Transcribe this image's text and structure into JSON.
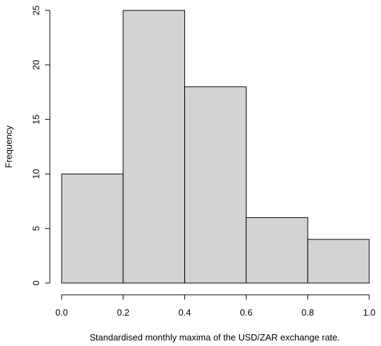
{
  "chart_data": {
    "type": "bar",
    "subtype": "histogram",
    "bins": [
      {
        "x0": 0.0,
        "x1": 0.2,
        "count": 10
      },
      {
        "x0": 0.2,
        "x1": 0.4,
        "count": 25
      },
      {
        "x0": 0.4,
        "x1": 0.6,
        "count": 18
      },
      {
        "x0": 0.6,
        "x1": 0.8,
        "count": 6
      },
      {
        "x0": 0.8,
        "x1": 1.0,
        "count": 4
      }
    ],
    "xlabel": "Standardised monthly maxima of the USD/ZAR exchange rate.",
    "ylabel": "Frequency",
    "xlim": [
      0.0,
      1.0
    ],
    "ylim": [
      0,
      25
    ],
    "xticks": [
      "0.0",
      "0.2",
      "0.4",
      "0.6",
      "0.8",
      "1.0"
    ],
    "yticks": [
      "0",
      "5",
      "10",
      "15",
      "20",
      "25"
    ],
    "bar_color": "#d3d3d3",
    "grid": false
  }
}
